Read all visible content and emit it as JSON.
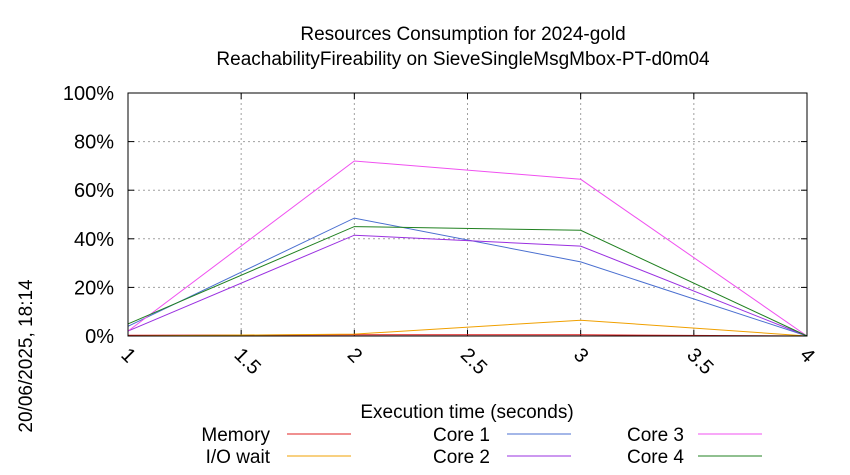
{
  "chart_data": {
    "type": "line",
    "title": [
      "Resources Consumption for 2024-gold",
      "ReachabilityFireability on SieveSingleMsgMbox-PT-d0m04"
    ],
    "side_label": "20/06/2025, 18:14",
    "xlabel": "Execution time (seconds)",
    "ylabel": "",
    "xlim": [
      1,
      4
    ],
    "ylim": [
      0,
      100
    ],
    "xticks": [
      1,
      1.5,
      2,
      2.5,
      3,
      3.5,
      4
    ],
    "xtick_labels": [
      "1",
      "1.5",
      "2",
      "2.5",
      "3",
      "3.5",
      "4"
    ],
    "yticks": [
      0,
      20,
      40,
      60,
      80,
      100
    ],
    "ytick_labels": [
      "0%",
      "20%",
      "40%",
      "60%",
      "80%",
      "100%"
    ],
    "grid": true,
    "legend_placement": "bottom",
    "series": [
      {
        "name": "Memory",
        "color": "#e02020",
        "x": [
          1,
          2,
          3,
          4
        ],
        "y": [
          0.3,
          0.5,
          0.5,
          0
        ]
      },
      {
        "name": "I/O wait",
        "color": "#f0a000",
        "x": [
          1,
          2,
          3,
          4
        ],
        "y": [
          0,
          0.8,
          6.5,
          0
        ]
      },
      {
        "name": "Core 1",
        "color": "#4a6fd0",
        "x": [
          1,
          2,
          3,
          4
        ],
        "y": [
          4,
          48.5,
          30.5,
          0
        ]
      },
      {
        "name": "Core 2",
        "color": "#9a30e0",
        "x": [
          1,
          2,
          3,
          4
        ],
        "y": [
          2,
          41.5,
          37,
          0
        ]
      },
      {
        "name": "Core 3",
        "color": "#f050f0",
        "x": [
          1,
          2,
          3,
          4
        ],
        "y": [
          2,
          72,
          64.5,
          0
        ]
      },
      {
        "name": "Core 4",
        "color": "#208020",
        "x": [
          1,
          2,
          3,
          4
        ],
        "y": [
          5,
          45,
          43.5,
          0
        ]
      }
    ]
  }
}
